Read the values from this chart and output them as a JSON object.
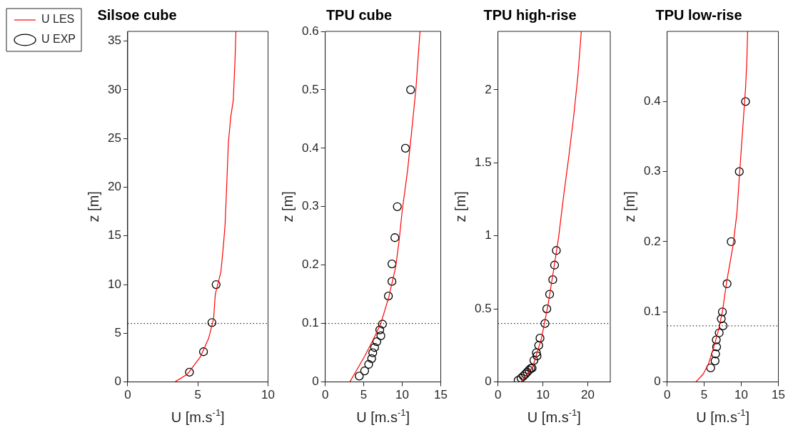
{
  "chart_data": [
    {
      "type": "scatter",
      "title": "Silsoe cube",
      "xlabel": "U [m.s$^{-1}$]",
      "ylabel": "z [m]",
      "xlim": [
        0,
        10
      ],
      "xticks": [
        0,
        5,
        10
      ],
      "ylim": [
        0,
        36
      ],
      "yticks": [
        0,
        5,
        10,
        15,
        20,
        25,
        30,
        35
      ],
      "grid": false,
      "legend": "left",
      "series": [
        {
          "name": "U LES",
          "type": "line",
          "color": "#ff0000",
          "marker": "none",
          "x": [
            3.36,
            4.25,
            5.19,
            5.77,
            6.12,
            6.24,
            6.64,
            6.82,
            6.94,
            7.06,
            7.17,
            7.34,
            7.52,
            7.64,
            7.71
          ],
          "values": [
            0,
            0.8,
            2.6,
            4.5,
            6.5,
            9.0,
            11.3,
            14.0,
            16.2,
            20.4,
            24.5,
            27.2,
            28.9,
            32.8,
            36
          ]
        },
        {
          "name": "U EXP",
          "type": "scatter",
          "color": "#000000",
          "marker": "circle",
          "x": [
            4.4,
            5.4,
            6.0,
            6.3
          ],
          "values": [
            1,
            3.1,
            6.1,
            10
          ]
        }
      ],
      "ref_lines": [
        {
          "axis": "y",
          "value": 6,
          "color": "#000000",
          "line_style": "dotted"
        }
      ]
    },
    {
      "type": "scatter",
      "title": "TPU cube",
      "xlabel": "U [m.s$^{-1}$]",
      "ylabel": "z [m]",
      "xlim": [
        0,
        15
      ],
      "xticks": [
        0,
        5,
        10,
        15
      ],
      "ylim": [
        0,
        0.6
      ],
      "yticks": [
        0,
        0.1,
        0.2,
        0.3,
        0.4,
        0.5,
        0.6
      ],
      "grid": false,
      "series": [
        {
          "type": "line",
          "color": "#ff0000",
          "marker": "none",
          "x": [
            3.19,
            4.07,
            5.12,
            6.17,
            7.22,
            8.27,
            9.15,
            9.6,
            10.0,
            10.7,
            11.25,
            11.78,
            12.3
          ],
          "values": [
            0,
            0.02,
            0.044,
            0.071,
            0.1,
            0.146,
            0.197,
            0.243,
            0.294,
            0.363,
            0.433,
            0.503,
            0.6
          ]
        },
        {
          "type": "scatter",
          "color": "#000000",
          "marker": "circle",
          "x": [
            4.42,
            5.12,
            5.64,
            6.03,
            6.17,
            6.41,
            6.7,
            7.22,
            7.08,
            7.43,
            8.2,
            8.66,
            8.66,
            9.04,
            9.36,
            10.41,
            11.08
          ],
          "values": [
            0.01,
            0.019,
            0.03,
            0.04,
            0.05,
            0.059,
            0.069,
            0.079,
            0.089,
            0.099,
            0.147,
            0.172,
            0.202,
            0.247,
            0.3,
            0.4,
            0.5
          ]
        }
      ],
      "ref_lines": [
        {
          "axis": "y",
          "value": 0.1,
          "color": "#000000",
          "line_style": "dotted"
        }
      ]
    },
    {
      "type": "scatter",
      "title": "TPU high-rise",
      "xlabel": "U [m.s$^{-1}$]",
      "ylabel": "z [m]",
      "xlim": [
        0,
        25
      ],
      "xticks": [
        0,
        10,
        20
      ],
      "ylim": [
        0,
        2.4
      ],
      "yticks": [
        0,
        0.5,
        1,
        1.5,
        2
      ],
      "grid": false,
      "series": [
        {
          "type": "line",
          "color": "#ff0000",
          "marker": "none",
          "x": [
            5.14,
            7.7,
            9.7,
            11.16,
            12.3,
            13.5,
            14.6,
            15.8,
            16.9,
            17.8,
            18.55
          ],
          "values": [
            0,
            0.1,
            0.3,
            0.53,
            0.75,
            0.99,
            1.27,
            1.55,
            1.83,
            2.1,
            2.4
          ]
        },
        {
          "type": "scatter",
          "color": "#000000",
          "marker": "circle",
          "x": [
            4.5,
            5.14,
            5.66,
            6.1,
            6.5,
            6.9,
            7.3,
            7.6,
            8.0,
            8.7,
            8.55,
            9.07,
            9.36,
            10.46,
            10.87,
            11.5,
            12.2,
            12.6,
            13.0
          ],
          "values": [
            0.011,
            0.026,
            0.04,
            0.054,
            0.067,
            0.08,
            0.093,
            0.095,
            0.148,
            0.178,
            0.2,
            0.25,
            0.3,
            0.4,
            0.5,
            0.6,
            0.7,
            0.8,
            0.9
          ]
        }
      ],
      "ref_lines": [
        {
          "axis": "y",
          "value": 0.4,
          "color": "#000000",
          "line_style": "dotted"
        }
      ]
    },
    {
      "type": "scatter",
      "title": "TPU low-rise",
      "xlabel": "U [m.s$^{-1}$]",
      "ylabel": "z [m]",
      "xlim": [
        0,
        15
      ],
      "xticks": [
        0,
        5,
        10,
        15
      ],
      "ylim": [
        0,
        0.5
      ],
      "yticks": [
        0,
        0.1,
        0.2,
        0.3,
        0.4
      ],
      "grid": false,
      "series": [
        {
          "type": "line",
          "color": "#ff0000",
          "marker": "none",
          "x": [
            3.86,
            4.85,
            5.55,
            6.25,
            6.95,
            7.48,
            8.0,
            8.89,
            9.41,
            9.76,
            10.19,
            10.57,
            10.75,
            10.85
          ],
          "values": [
            0,
            0.011,
            0.025,
            0.048,
            0.075,
            0.102,
            0.141,
            0.195,
            0.241,
            0.296,
            0.361,
            0.419,
            0.458,
            0.5
          ]
        },
        {
          "type": "scatter",
          "color": "#000000",
          "marker": "circle",
          "x": [
            5.87,
            6.46,
            6.53,
            6.67,
            6.63,
            7.02,
            7.55,
            7.3,
            7.45,
            8.08,
            8.64,
            9.73,
            10.57
          ],
          "values": [
            0.02,
            0.03,
            0.04,
            0.05,
            0.06,
            0.07,
            0.08,
            0.09,
            0.1,
            0.14,
            0.2,
            0.3,
            0.4
          ]
        }
      ],
      "ref_lines": [
        {
          "axis": "y",
          "value": 0.08,
          "color": "#000000",
          "line_style": "dotted"
        }
      ]
    }
  ]
}
